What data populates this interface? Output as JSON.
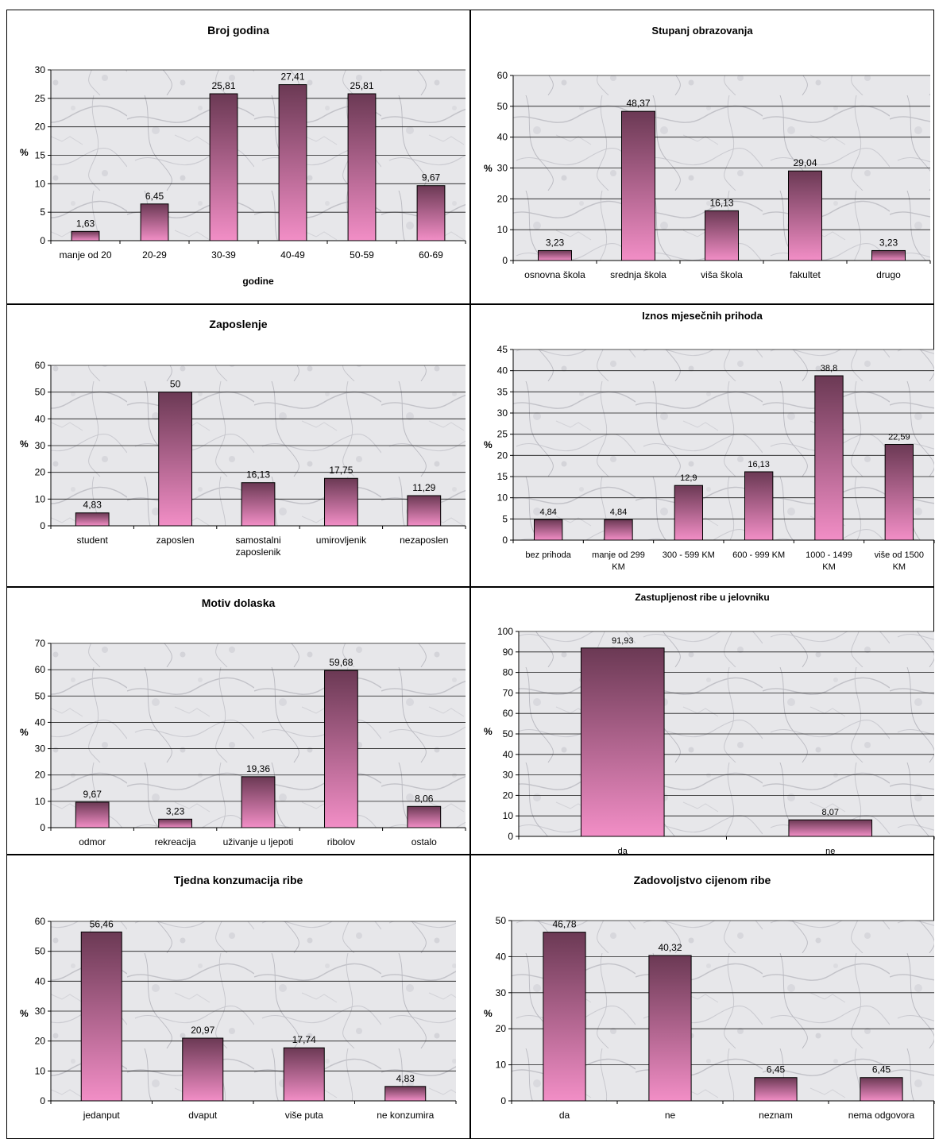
{
  "chart_data": [
    {
      "type": "bar",
      "title": "Broj godina",
      "xlabel": "godine",
      "ylabel": "%",
      "categories": [
        [
          "manje od 20"
        ],
        [
          "20-29"
        ],
        [
          "30-39"
        ],
        [
          "40-49"
        ],
        [
          "50-59"
        ],
        [
          "60-69"
        ]
      ],
      "values": [
        1.63,
        6.45,
        25.81,
        27.41,
        25.81,
        9.67
      ],
      "data_labels": [
        "1,63",
        "6,45",
        "25,81",
        "27,41",
        "25,81",
        "9,67"
      ],
      "ylim": [
        0,
        30
      ],
      "yticks": [
        0,
        5,
        10,
        15,
        20,
        25,
        30
      ],
      "grid": true
    },
    {
      "type": "bar",
      "title": "Stupanj obrazovanja",
      "xlabel": "",
      "ylabel": "%",
      "categories": [
        [
          "osnovna škola"
        ],
        [
          "srednja škola"
        ],
        [
          "viša škola"
        ],
        [
          "fakultet"
        ],
        [
          "drugo"
        ]
      ],
      "values": [
        3.23,
        48.37,
        16.13,
        29.04,
        3.23
      ],
      "data_labels": [
        "3,23",
        "48,37",
        "16,13",
        "29,04",
        "3,23"
      ],
      "ylim": [
        0,
        60
      ],
      "yticks": [
        0,
        10,
        20,
        30,
        40,
        50,
        60
      ],
      "grid": true
    },
    {
      "type": "bar",
      "title": "Zaposlenje",
      "xlabel": "",
      "ylabel": "%",
      "categories": [
        [
          "student"
        ],
        [
          "zaposlen"
        ],
        [
          "samostalni",
          "zaposlenik"
        ],
        [
          "umirovljenik"
        ],
        [
          "nezaposlen"
        ]
      ],
      "values": [
        4.83,
        50,
        16.13,
        17.75,
        11.29
      ],
      "data_labels": [
        "4,83",
        "50",
        "16,13",
        "17,75",
        "11,29"
      ],
      "ylim": [
        0,
        60
      ],
      "yticks": [
        0,
        10,
        20,
        30,
        40,
        50,
        60
      ],
      "grid": true
    },
    {
      "type": "bar",
      "title": "Iznos mjesečnih prihoda",
      "xlabel": "",
      "ylabel": "%",
      "categories": [
        [
          "bez prihoda"
        ],
        [
          "manje od 299",
          "KM"
        ],
        [
          "300 - 599 KM"
        ],
        [
          "600 - 999 KM"
        ],
        [
          "1000 - 1499",
          "KM"
        ],
        [
          "više od 1500",
          "KM"
        ]
      ],
      "values": [
        4.84,
        4.84,
        12.9,
        16.13,
        38.8,
        22.59
      ],
      "data_labels": [
        "4,84",
        "4,84",
        "12,9",
        "16,13",
        "38,8",
        "22,59"
      ],
      "ylim": [
        0,
        45
      ],
      "yticks": [
        0,
        5,
        10,
        15,
        20,
        25,
        30,
        35,
        40,
        45
      ],
      "grid": true
    },
    {
      "type": "bar",
      "title": "Motiv dolaska",
      "xlabel": "",
      "ylabel": "%",
      "categories": [
        [
          "odmor"
        ],
        [
          "rekreacija"
        ],
        [
          "uživanje u ljepoti"
        ],
        [
          "ribolov"
        ],
        [
          "ostalo"
        ]
      ],
      "values": [
        9.67,
        3.23,
        19.36,
        59.68,
        8.06
      ],
      "data_labels": [
        "9,67",
        "3,23",
        "19,36",
        "59,68",
        "8,06"
      ],
      "ylim": [
        0,
        70
      ],
      "yticks": [
        0,
        10,
        20,
        30,
        40,
        50,
        60,
        70
      ],
      "grid": true
    },
    {
      "type": "bar",
      "title": "Zastupljenost ribe u jelovniku",
      "xlabel": "",
      "ylabel": "%",
      "categories": [
        [
          "da"
        ],
        [
          "ne"
        ]
      ],
      "values": [
        91.93,
        8.07
      ],
      "data_labels": [
        "91,93",
        "8,07"
      ],
      "ylim": [
        0,
        100
      ],
      "yticks": [
        0,
        10,
        20,
        30,
        40,
        50,
        60,
        70,
        80,
        90,
        100
      ],
      "grid": true
    },
    {
      "type": "bar",
      "title": "Tjedna konzumacija ribe",
      "xlabel": "",
      "ylabel": "%",
      "categories": [
        [
          "jedanput"
        ],
        [
          "dvaput"
        ],
        [
          "više puta"
        ],
        [
          "ne konzumira"
        ]
      ],
      "values": [
        56.46,
        20.97,
        17.74,
        4.83
      ],
      "data_labels": [
        "56,46",
        "20,97",
        "17,74",
        "4,83"
      ],
      "ylim": [
        0,
        60
      ],
      "yticks": [
        0,
        10,
        20,
        30,
        40,
        50,
        60
      ],
      "grid": true
    },
    {
      "type": "bar",
      "title": "Zadovoljstvo cijenom ribe",
      "xlabel": "",
      "ylabel": "%",
      "categories": [
        [
          "da"
        ],
        [
          "ne"
        ],
        [
          "neznam"
        ],
        [
          "nema odgovora"
        ]
      ],
      "values": [
        46.78,
        40.32,
        6.45,
        6.45
      ],
      "data_labels": [
        "46,78",
        "40,32",
        "6,45",
        "6,45"
      ],
      "ylim": [
        0,
        50
      ],
      "yticks": [
        0,
        10,
        20,
        30,
        40,
        50
      ],
      "grid": true
    }
  ],
  "colors": {
    "bar_top": "#6b3954",
    "bar_bottom": "#f28ec6",
    "plot_background": "#e6e6ea",
    "gridline": "#1a1a1a",
    "text": "#000000"
  }
}
